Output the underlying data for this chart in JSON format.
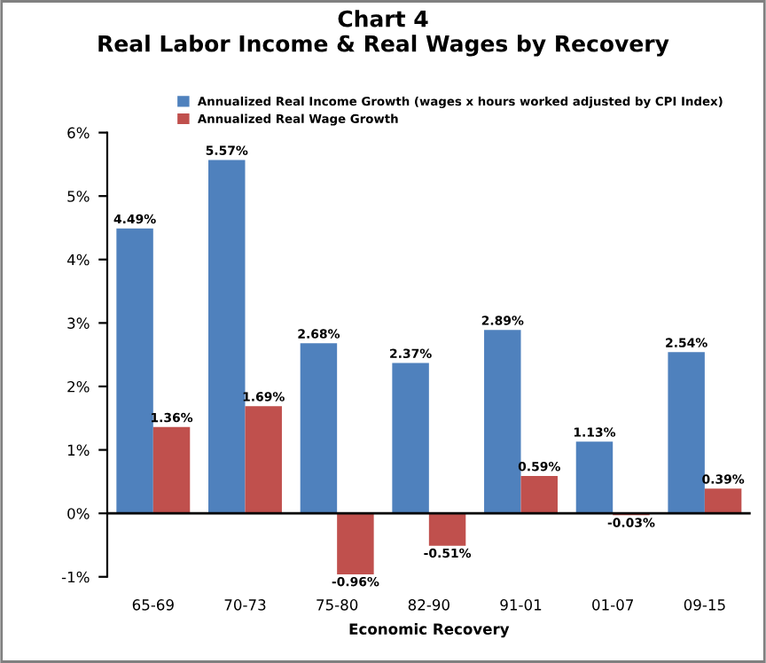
{
  "chart_data": {
    "type": "bar",
    "title": "Chart 4\nReal Labor Income & Real Wages by Recovery",
    "xlabel": "Economic Recovery",
    "categories": [
      "65-69",
      "70-73",
      "75-80",
      "82-90",
      "91-01",
      "01-07",
      "09-15"
    ],
    "series": [
      {
        "name": "Annualized Real Income Growth (wages x hours worked adjusted by CPI Index)",
        "color": "#4f81bd",
        "values": [
          4.49,
          5.57,
          2.68,
          2.37,
          2.89,
          1.13,
          2.54
        ],
        "value_labels": [
          "4.49%",
          "5.57%",
          "2.68%",
          "2.37%",
          "2.89%",
          "1.13%",
          "2.54%"
        ]
      },
      {
        "name": "Annualized Real Wage Growth",
        "color": "#c0504d",
        "values": [
          1.36,
          1.69,
          -0.96,
          -0.51,
          0.59,
          -0.03,
          0.39
        ],
        "value_labels": [
          "1.36%",
          "1.69%",
          "-0.96%",
          "-0.51%",
          "0.59%",
          "-0.03%",
          "0.39%"
        ]
      }
    ],
    "ylim": [
      -1,
      6
    ],
    "yticks": [
      {
        "value": -1,
        "label": "-1%"
      },
      {
        "value": 0,
        "label": "0%"
      },
      {
        "value": 1,
        "label": "1%"
      },
      {
        "value": 2,
        "label": "2%"
      },
      {
        "value": 3,
        "label": "3%"
      },
      {
        "value": 4,
        "label": "4%"
      },
      {
        "value": 5,
        "label": "5%"
      },
      {
        "value": 6,
        "label": "6%"
      }
    ],
    "legend": "top"
  }
}
